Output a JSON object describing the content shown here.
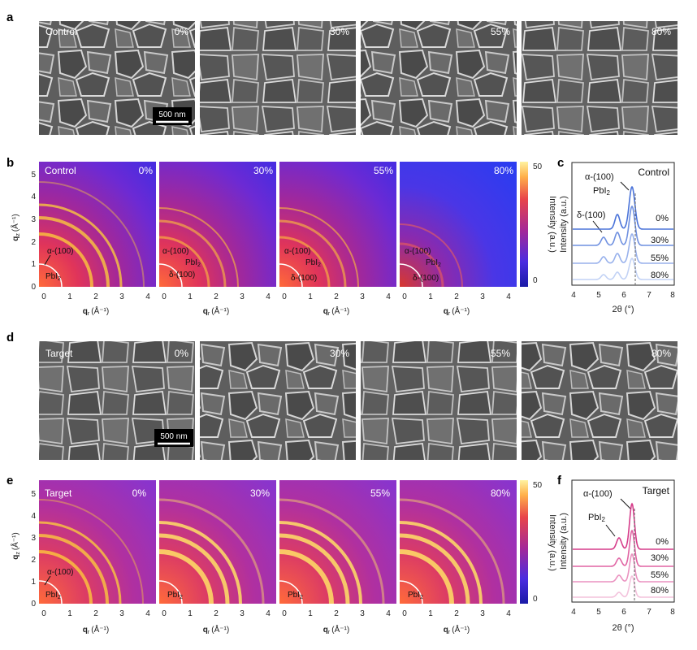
{
  "panels": {
    "a": {
      "letter": "a",
      "sample": "Control",
      "humidity": [
        "0%",
        "30%",
        "55%",
        "80%"
      ],
      "scale_bar": "500 nm"
    },
    "b": {
      "letter": "b",
      "sample": "Control",
      "humidity": [
        "0%",
        "30%",
        "55%",
        "80%"
      ],
      "annot_alpha": "α-(100)",
      "annot_pbi2": "PbI",
      "annot_pbi2_sub": "2",
      "annot_delta": "δ-(100)",
      "y_ticks": [
        "0",
        "1",
        "2",
        "3",
        "4",
        "5"
      ],
      "x_ticks": [
        "0",
        "1",
        "2",
        "3",
        "4"
      ],
      "ylabel_q": "q",
      "ylabel_sub": "z",
      "ylabel_unit": "(Å⁻¹)",
      "xlabel_q": "q",
      "xlabel_sub": "r",
      "xlabel_unit": "(Å⁻¹)",
      "colorbar_max": "50",
      "colorbar_min": "0",
      "colorbar_label": "Intensity (a.u.)"
    },
    "c": {
      "letter": "c",
      "title": "Control",
      "peak_alpha": "α-(100)",
      "peak_pbi2": "PbI",
      "peak_pbi2_sub": "2",
      "peak_delta": "δ-(100)",
      "curve_labels": [
        "0%",
        "30%",
        "55%",
        "80%"
      ],
      "x_ticks": [
        "4",
        "5",
        "6",
        "7",
        "8"
      ],
      "xlabel": "2θ (°)",
      "ylabel": "Intensity (a.u.)",
      "colors": [
        "#4a73d9",
        "#6f90e0",
        "#98b1ec",
        "#c2d2f5"
      ]
    },
    "d": {
      "letter": "d",
      "sample": "Target",
      "humidity": [
        "0%",
        "30%",
        "55%",
        "80%"
      ],
      "scale_bar": "500 nm"
    },
    "e": {
      "letter": "e",
      "sample": "Target",
      "humidity": [
        "0%",
        "30%",
        "55%",
        "80%"
      ],
      "annot_alpha": "α-(100)",
      "annot_pbi2": "PbI",
      "annot_pbi2_sub": "2",
      "y_ticks": [
        "0",
        "1",
        "2",
        "3",
        "4",
        "5"
      ],
      "x_ticks": [
        "0",
        "1",
        "2",
        "3",
        "4"
      ],
      "ylabel_q": "q",
      "ylabel_sub": "z",
      "ylabel_unit": "(Å⁻¹)",
      "xlabel_q": "q",
      "xlabel_sub": "r",
      "xlabel_unit": "(Å⁻¹)",
      "colorbar_max": "50",
      "colorbar_min": "0",
      "colorbar_label": "Intensity (a.u.)"
    },
    "f": {
      "letter": "f",
      "title": "Target",
      "peak_alpha": "α-(100)",
      "peak_pbi2": "PbI",
      "peak_pbi2_sub": "2",
      "curve_labels": [
        "0%",
        "30%",
        "55%",
        "80%"
      ],
      "x_ticks": [
        "4",
        "5",
        "6",
        "7",
        "8"
      ],
      "xlabel": "2θ (°)",
      "ylabel": "Intensity (a.u.)",
      "colors": [
        "#d63c8a",
        "#e064a3",
        "#ea92c0",
        "#f3c2dc"
      ]
    }
  }
}
